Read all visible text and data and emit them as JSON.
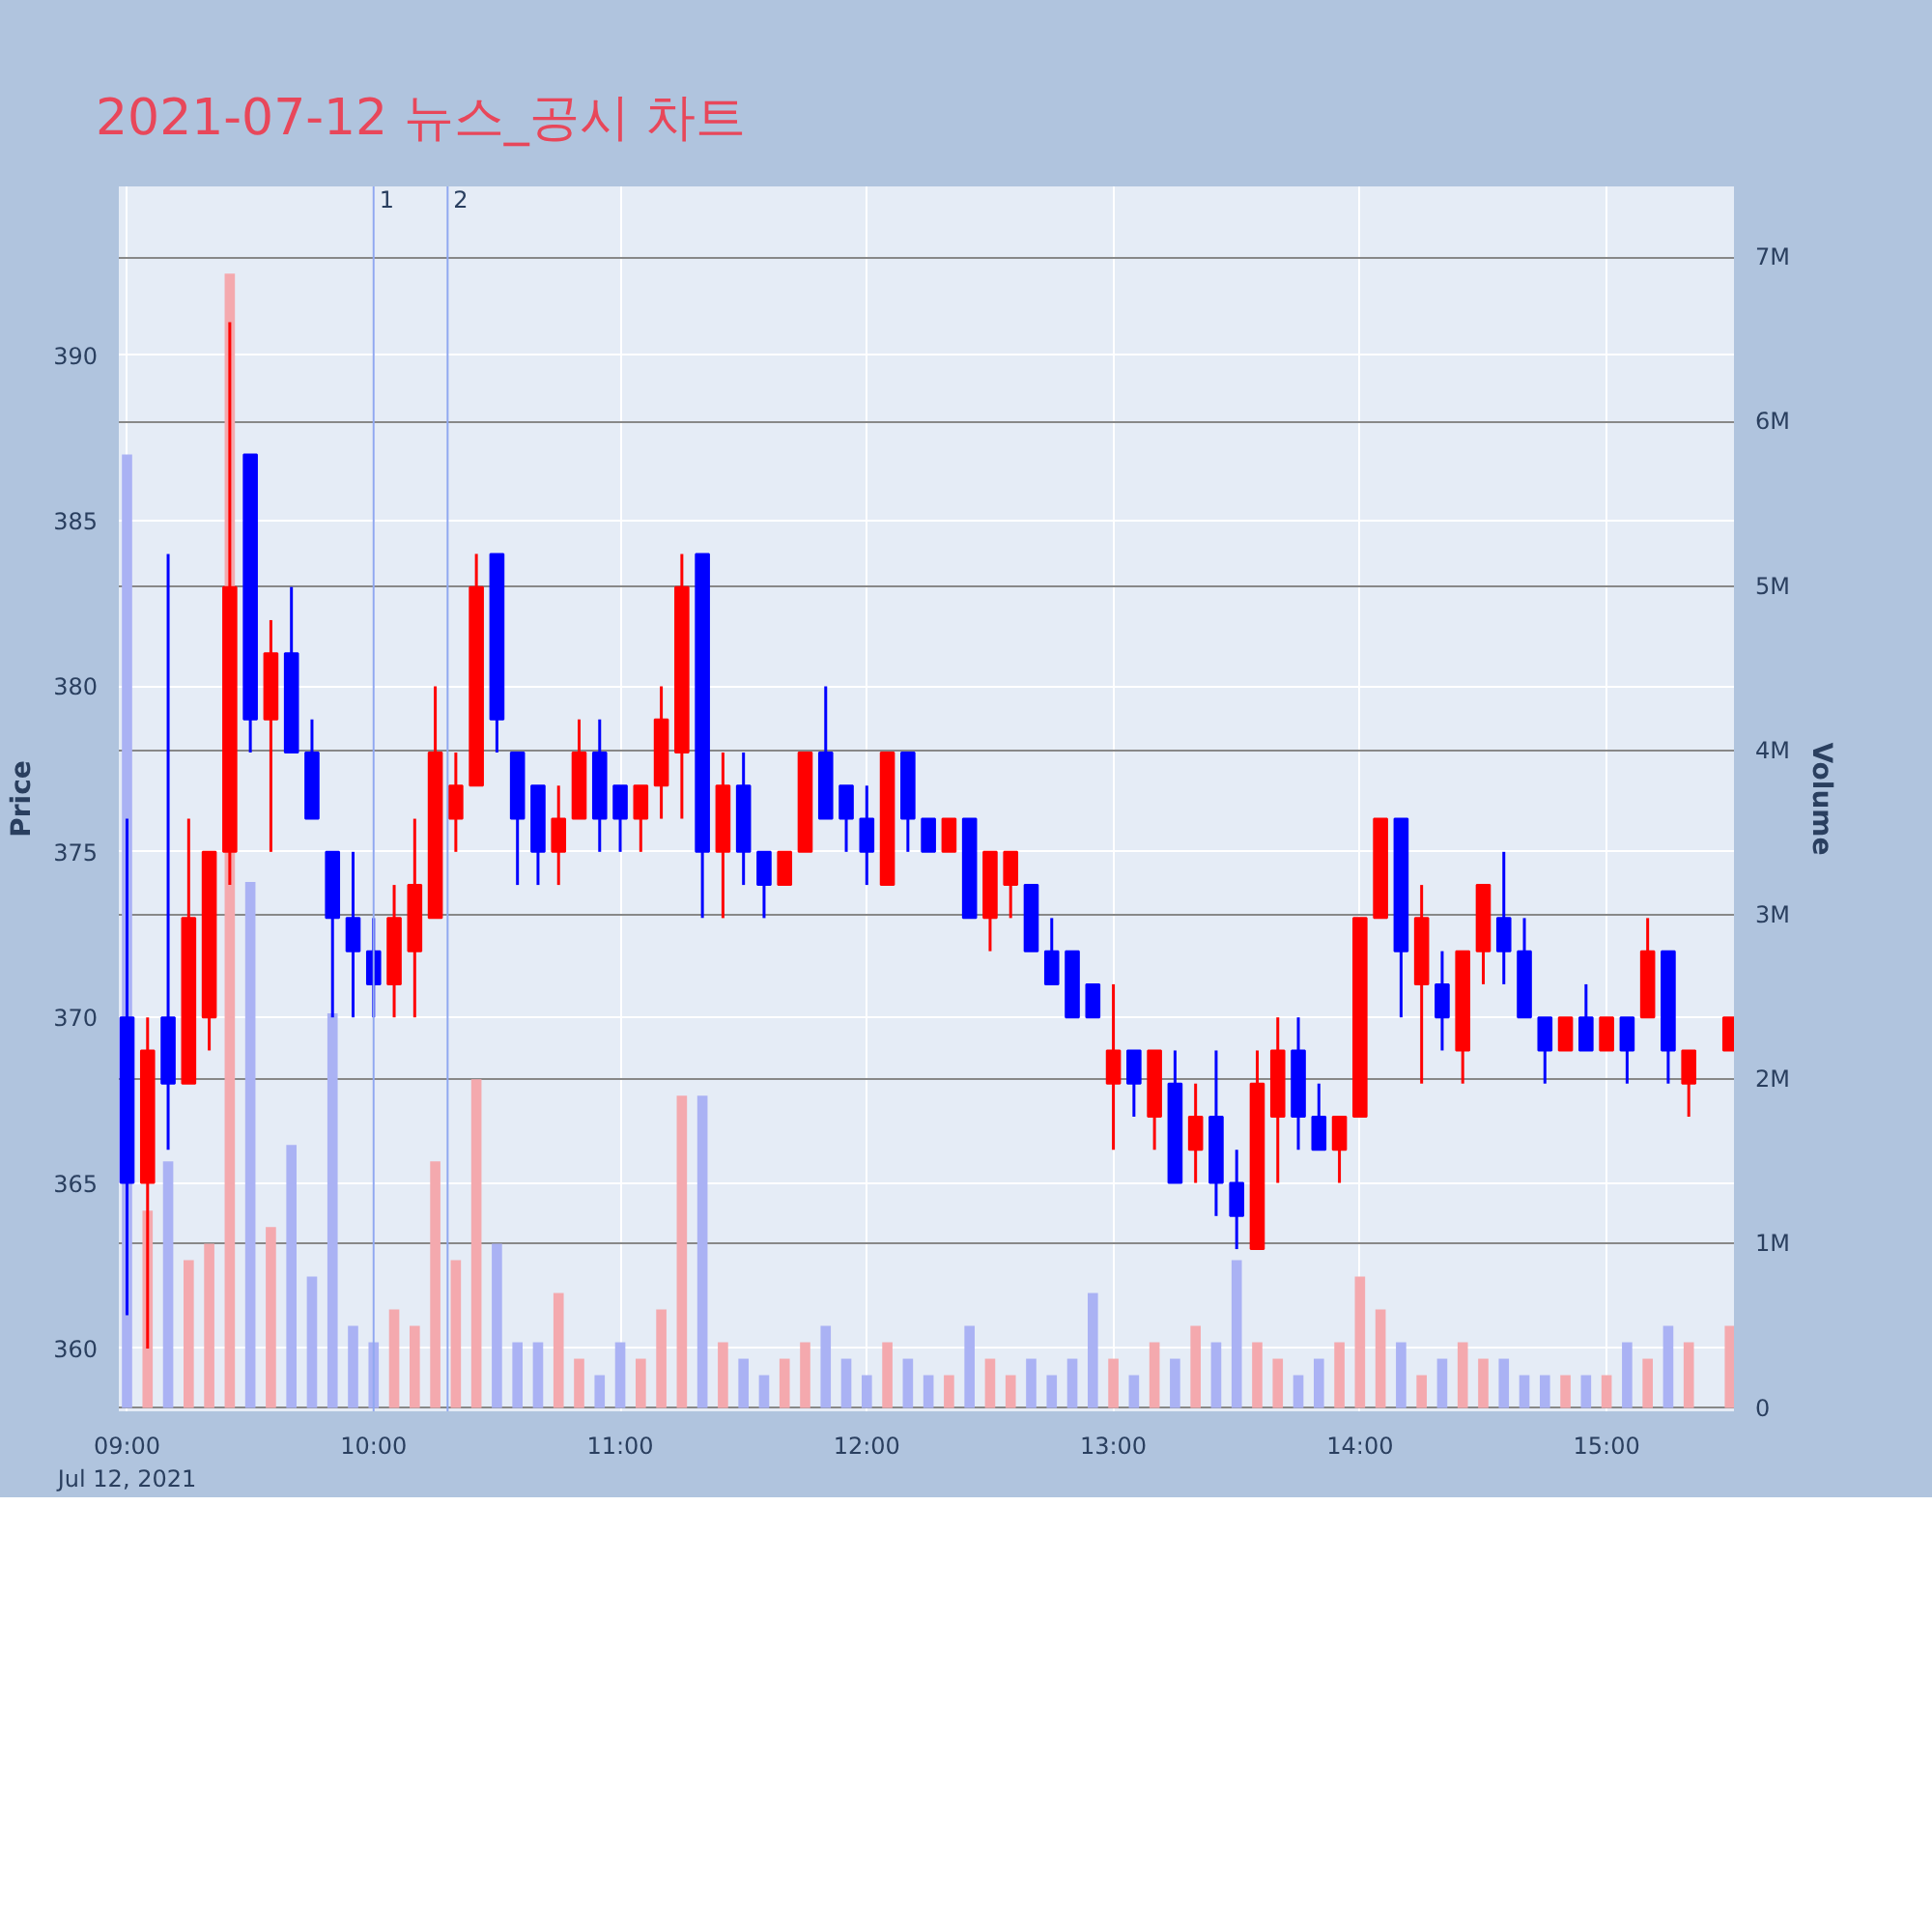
{
  "chart_data": {
    "type": "candlestick",
    "title": "2021-07-12 뉴스_공시 차트",
    "ylabel": "Price",
    "y2label": "Volume",
    "x": [
      "2021-07-12T09:00",
      "2021-07-12T09:05",
      "2021-07-12T09:10",
      "2021-07-12T09:15",
      "2021-07-12T09:20",
      "2021-07-12T09:25",
      "2021-07-12T09:30",
      "2021-07-12T09:35",
      "2021-07-12T09:40",
      "2021-07-12T09:45",
      "2021-07-12T09:50",
      "2021-07-12T09:55",
      "2021-07-12T10:00",
      "2021-07-12T10:05",
      "2021-07-12T10:10",
      "2021-07-12T10:15",
      "2021-07-12T10:20",
      "2021-07-12T10:25",
      "2021-07-12T10:30",
      "2021-07-12T10:35",
      "2021-07-12T10:40",
      "2021-07-12T10:45",
      "2021-07-12T10:50",
      "2021-07-12T10:55",
      "2021-07-12T11:00",
      "2021-07-12T11:05",
      "2021-07-12T11:10",
      "2021-07-12T11:15",
      "2021-07-12T11:20",
      "2021-07-12T11:25",
      "2021-07-12T11:30",
      "2021-07-12T11:35",
      "2021-07-12T11:40",
      "2021-07-12T11:45",
      "2021-07-12T11:50",
      "2021-07-12T11:55",
      "2021-07-12T12:00",
      "2021-07-12T12:05",
      "2021-07-12T12:10",
      "2021-07-12T12:15",
      "2021-07-12T12:20",
      "2021-07-12T12:25",
      "2021-07-12T12:30",
      "2021-07-12T12:35",
      "2021-07-12T12:40",
      "2021-07-12T12:45",
      "2021-07-12T12:50",
      "2021-07-12T12:55",
      "2021-07-12T13:00",
      "2021-07-12T13:05",
      "2021-07-12T13:10",
      "2021-07-12T13:15",
      "2021-07-12T13:20",
      "2021-07-12T13:25",
      "2021-07-12T13:30",
      "2021-07-12T13:35",
      "2021-07-12T13:40",
      "2021-07-12T13:45",
      "2021-07-12T13:50",
      "2021-07-12T13:55",
      "2021-07-12T14:00",
      "2021-07-12T14:05",
      "2021-07-12T14:10",
      "2021-07-12T14:15",
      "2021-07-12T14:20",
      "2021-07-12T14:25",
      "2021-07-12T14:30",
      "2021-07-12T14:35",
      "2021-07-12T14:40",
      "2021-07-12T14:45",
      "2021-07-12T14:50",
      "2021-07-12T14:55",
      "2021-07-12T15:00",
      "2021-07-12T15:05",
      "2021-07-12T15:10",
      "2021-07-12T15:15",
      "2021-07-12T15:20",
      "2021-07-12T15:30"
    ],
    "ohlc": [
      [
        370,
        376,
        361,
        365
      ],
      [
        365,
        370,
        360,
        369
      ],
      [
        370,
        384,
        366,
        368
      ],
      [
        368,
        376,
        368,
        373
      ],
      [
        370,
        375,
        369,
        375
      ],
      [
        375,
        391,
        374,
        383
      ],
      [
        387,
        387,
        378,
        379
      ],
      [
        379,
        382,
        375,
        381
      ],
      [
        381,
        383,
        378,
        378
      ],
      [
        378,
        379,
        376,
        376
      ],
      [
        375,
        375,
        370,
        373
      ],
      [
        373,
        375,
        370,
        372
      ],
      [
        372,
        373,
        370,
        371
      ],
      [
        371,
        374,
        370,
        373
      ],
      [
        372,
        376,
        370,
        374
      ],
      [
        373,
        380,
        373,
        378
      ],
      [
        376,
        378,
        375,
        377
      ],
      [
        377,
        384,
        377,
        383
      ],
      [
        384,
        384,
        378,
        379
      ],
      [
        378,
        378,
        374,
        376
      ],
      [
        377,
        377,
        374,
        375
      ],
      [
        375,
        377,
        374,
        376
      ],
      [
        376,
        379,
        376,
        378
      ],
      [
        378,
        379,
        375,
        376
      ],
      [
        377,
        377,
        375,
        376
      ],
      [
        376,
        377,
        375,
        377
      ],
      [
        377,
        380,
        376,
        379
      ],
      [
        378,
        384,
        376,
        383
      ],
      [
        384,
        384,
        373,
        375
      ],
      [
        375,
        378,
        373,
        377
      ],
      [
        377,
        378,
        374,
        375
      ],
      [
        375,
        375,
        373,
        374
      ],
      [
        374,
        375,
        374,
        375
      ],
      [
        375,
        378,
        375,
        378
      ],
      [
        378,
        380,
        376,
        376
      ],
      [
        377,
        377,
        375,
        376
      ],
      [
        376,
        377,
        374,
        375
      ],
      [
        374,
        378,
        374,
        378
      ],
      [
        378,
        378,
        375,
        376
      ],
      [
        376,
        376,
        375,
        375
      ],
      [
        375,
        376,
        375,
        376
      ],
      [
        376,
        376,
        373,
        373
      ],
      [
        373,
        375,
        372,
        375
      ],
      [
        374,
        375,
        373,
        375
      ],
      [
        374,
        374,
        372,
        372
      ],
      [
        372,
        373,
        371,
        371
      ],
      [
        372,
        372,
        370,
        370
      ],
      [
        371,
        371,
        370,
        370
      ],
      [
        368,
        371,
        366,
        369
      ],
      [
        369,
        369,
        367,
        368
      ],
      [
        367,
        369,
        366,
        369
      ],
      [
        368,
        369,
        365,
        365
      ],
      [
        366,
        368,
        365,
        367
      ],
      [
        367,
        369,
        364,
        365
      ],
      [
        365,
        366,
        363,
        364
      ],
      [
        363,
        369,
        363,
        368
      ],
      [
        367,
        370,
        365,
        369
      ],
      [
        369,
        370,
        366,
        367
      ],
      [
        367,
        368,
        366,
        366
      ],
      [
        366,
        367,
        365,
        367
      ],
      [
        367,
        373,
        367,
        373
      ],
      [
        373,
        376,
        373,
        376
      ],
      [
        376,
        376,
        370,
        372
      ],
      [
        371,
        374,
        368,
        373
      ],
      [
        371,
        372,
        369,
        370
      ],
      [
        369,
        372,
        368,
        372
      ],
      [
        372,
        374,
        371,
        374
      ],
      [
        373,
        375,
        371,
        372
      ],
      [
        372,
        373,
        370,
        370
      ],
      [
        370,
        370,
        368,
        369
      ],
      [
        369,
        370,
        369,
        370
      ],
      [
        370,
        371,
        369,
        369
      ],
      [
        369,
        370,
        369,
        370
      ],
      [
        370,
        370,
        368,
        369
      ],
      [
        370,
        373,
        370,
        372
      ],
      [
        372,
        372,
        368,
        369
      ],
      [
        368,
        369,
        367,
        369
      ],
      [
        369,
        370,
        369,
        370
      ]
    ],
    "colors": [
      "#0000ff",
      "#ff0000",
      "#0000ff",
      "#ff0000",
      "#ff0000",
      "#ff0000",
      "#0000ff",
      "#ff0000",
      "#0000ff",
      "#0000ff",
      "#0000ff",
      "#0000ff",
      "#0000ff",
      "#ff0000",
      "#ff0000",
      "#ff0000",
      "#ff0000",
      "#ff0000",
      "#0000ff",
      "#0000ff",
      "#0000ff",
      "#ff0000",
      "#ff0000",
      "#0000ff",
      "#0000ff",
      "#ff0000",
      "#ff0000",
      "#ff0000",
      "#0000ff",
      "#ff0000",
      "#0000ff",
      "#0000ff",
      "#ff0000",
      "#ff0000",
      "#0000ff",
      "#0000ff",
      "#0000ff",
      "#ff0000",
      "#0000ff",
      "#0000ff",
      "#ff0000",
      "#0000ff",
      "#ff0000",
      "#ff0000",
      "#0000ff",
      "#0000ff",
      "#0000ff",
      "#0000ff",
      "#ff0000",
      "#0000ff",
      "#ff0000",
      "#0000ff",
      "#ff0000",
      "#0000ff",
      "#0000ff",
      "#ff0000",
      "#ff0000",
      "#0000ff",
      "#0000ff",
      "#ff0000",
      "#ff0000",
      "#ff0000",
      "#0000ff",
      "#ff0000",
      "#0000ff",
      "#ff0000",
      "#ff0000",
      "#0000ff",
      "#0000ff",
      "#0000ff",
      "#ff0000",
      "#0000ff",
      "#ff0000",
      "#0000ff",
      "#ff0000",
      "#0000ff",
      "#ff0000",
      "#ff0000"
    ],
    "series": [
      {
        "type": "bar",
        "axis": "y2",
        "values": [
          5800000,
          1200000,
          1500000,
          900000,
          1000000,
          6900000,
          3200000,
          1100000,
          1600000,
          800000,
          2400000,
          500000,
          400000,
          600000,
          500000,
          1500000,
          900000,
          2000000,
          1000000,
          400000,
          400000,
          700000,
          300000,
          200000,
          400000,
          300000,
          600000,
          1900000,
          1900000,
          400000,
          300000,
          200000,
          300000,
          400000,
          500000,
          300000,
          200000,
          400000,
          300000,
          200000,
          200000,
          500000,
          300000,
          200000,
          300000,
          200000,
          300000,
          700000,
          300000,
          200000,
          400000,
          300000,
          500000,
          400000,
          900000,
          400000,
          300000,
          200000,
          300000,
          400000,
          800000,
          600000,
          400000,
          200000,
          300000,
          400000,
          300000,
          300000,
          200000,
          200000,
          200000,
          200000,
          200000,
          400000,
          300000,
          500000,
          400000,
          500000
        ],
        "colors": [
          "#aab2f4",
          "#f4a9ae",
          "#aab2f4",
          "#f4a9ae",
          "#f4a9ae",
          "#f4a9ae",
          "#aab2f4",
          "#f4a9ae",
          "#aab2f4",
          "#aab2f4",
          "#aab2f4",
          "#aab2f4",
          "#aab2f4",
          "#f4a9ae",
          "#f4a9ae",
          "#f4a9ae",
          "#f4a9ae",
          "#f4a9ae",
          "#aab2f4",
          "#aab2f4",
          "#aab2f4",
          "#f4a9ae",
          "#f4a9ae",
          "#aab2f4",
          "#aab2f4",
          "#f4a9ae",
          "#f4a9ae",
          "#f4a9ae",
          "#aab2f4",
          "#f4a9ae",
          "#aab2f4",
          "#aab2f4",
          "#f4a9ae",
          "#f4a9ae",
          "#aab2f4",
          "#aab2f4",
          "#aab2f4",
          "#f4a9ae",
          "#aab2f4",
          "#aab2f4",
          "#f4a9ae",
          "#aab2f4",
          "#f4a9ae",
          "#f4a9ae",
          "#aab2f4",
          "#aab2f4",
          "#aab2f4",
          "#aab2f4",
          "#f4a9ae",
          "#aab2f4",
          "#f4a9ae",
          "#aab2f4",
          "#f4a9ae",
          "#aab2f4",
          "#aab2f4",
          "#f4a9ae",
          "#f4a9ae",
          "#aab2f4",
          "#aab2f4",
          "#f4a9ae",
          "#f4a9ae",
          "#f4a9ae",
          "#aab2f4",
          "#f4a9ae",
          "#aab2f4",
          "#f4a9ae",
          "#f4a9ae",
          "#aab2f4",
          "#aab2f4",
          "#aab2f4",
          "#f4a9ae",
          "#aab2f4",
          "#f4a9ae",
          "#aab2f4",
          "#f4a9ae",
          "#aab2f4",
          "#f4a9ae",
          "#f4a9ae"
        ]
      }
    ],
    "xlim": [
      "2021-07-12T08:58",
      "2021-07-12T15:31"
    ],
    "xticks": [
      {
        "value": "2021-07-12T09:00",
        "label": "09:00\nJul 12, 2021"
      },
      {
        "value": "2021-07-12T10:00",
        "label": "10:00"
      },
      {
        "value": "2021-07-12T11:00",
        "label": "11:00"
      },
      {
        "value": "2021-07-12T12:00",
        "label": "12:00"
      },
      {
        "value": "2021-07-12T13:00",
        "label": "13:00"
      },
      {
        "value": "2021-07-12T14:00",
        "label": "14:00"
      },
      {
        "value": "2021-07-12T15:00",
        "label": "15:00"
      }
    ],
    "ylim": [
      358.1,
      395.1
    ],
    "yticks": [
      360,
      365,
      370,
      375,
      380,
      385,
      390
    ],
    "y2lim": [
      -20000,
      7430000
    ],
    "y2ticks": [
      {
        "value": 0,
        "label": "0"
      },
      {
        "value": 1000000,
        "label": "1M"
      },
      {
        "value": 2000000,
        "label": "2M"
      },
      {
        "value": 3000000,
        "label": "3M"
      },
      {
        "value": 4000000,
        "label": "4M"
      },
      {
        "value": 5000000,
        "label": "5M"
      },
      {
        "value": 6000000,
        "label": "6M"
      },
      {
        "value": 7000000,
        "label": "7M"
      }
    ],
    "ref_lines": [
      {
        "axis": "x",
        "value": "2021-07-12T10:00",
        "label": "1",
        "color": "#90a8f0"
      },
      {
        "axis": "x",
        "value": "2021-07-12T10:18",
        "label": "2",
        "color": "#90a8f0"
      }
    ],
    "grid": true
  }
}
